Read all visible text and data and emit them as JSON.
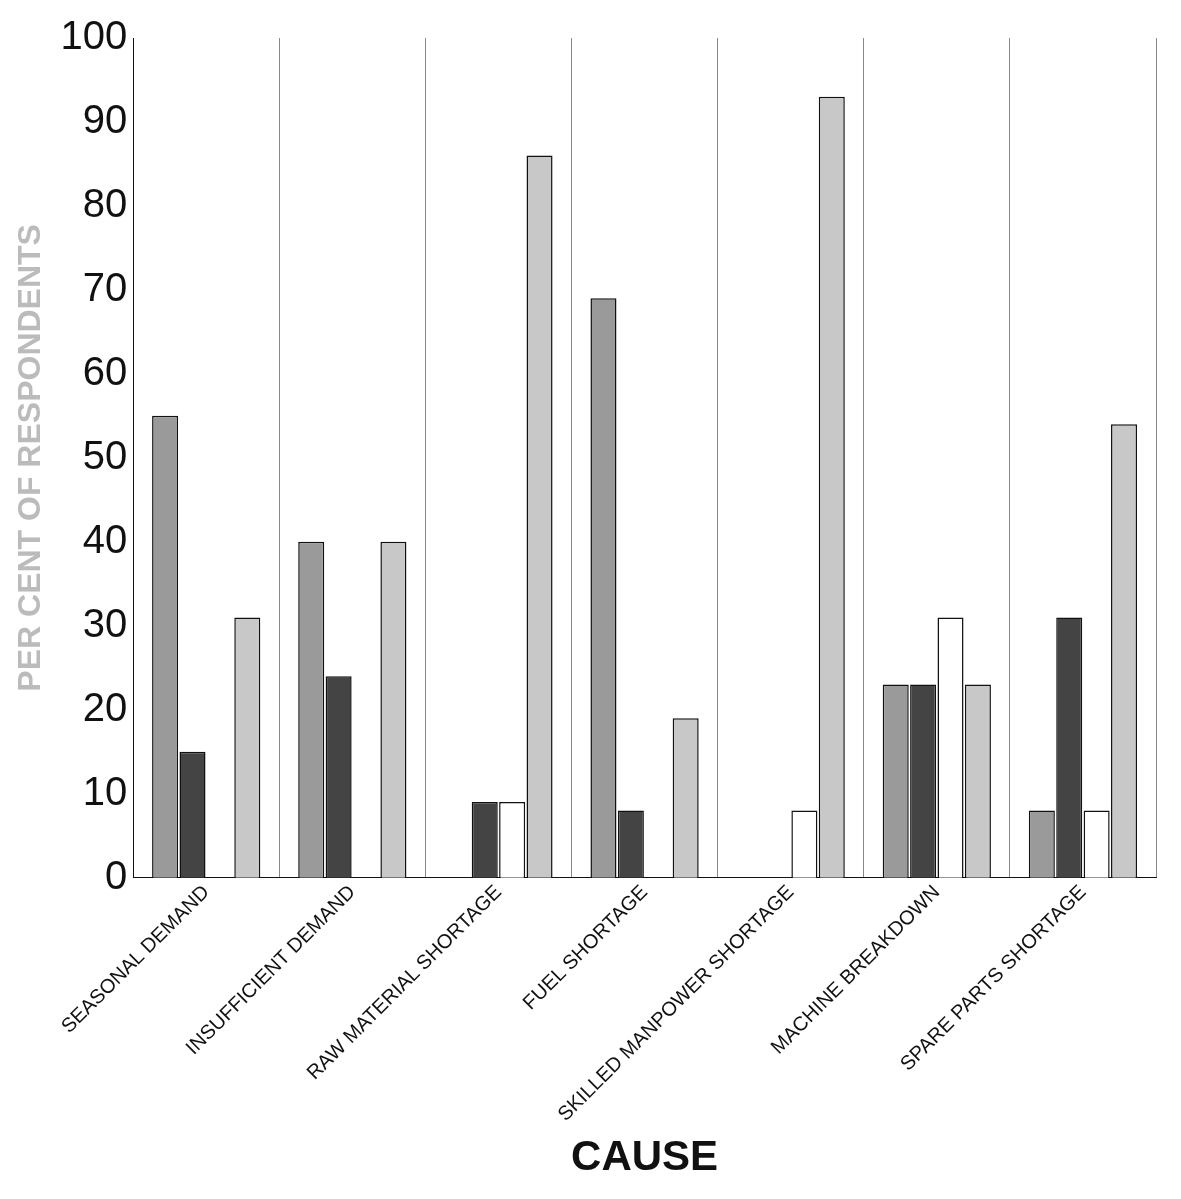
{
  "chart_data": {
    "type": "bar",
    "xlabel": "CAUSE",
    "ylabel": "PER CENT OF RESPONDENTS",
    "categories": [
      "SEASONAL DEMAND",
      "INSUFFICIENT DEMAND",
      "RAW MATERIAL SHORTAGE",
      "FUEL SHORTAGE",
      "SKILLED MANPOWER SHORTAGE",
      "MACHINE BREAKDOWN",
      "SPARE PARTS SHORTAGE"
    ],
    "series": [
      {
        "color": "#9a9a9a",
        "values": [
          55,
          40,
          0,
          69,
          0,
          23,
          8
        ]
      },
      {
        "color": "#444444",
        "values": [
          15,
          24,
          9,
          8,
          0,
          23,
          31
        ]
      },
      {
        "color": "#ffffff",
        "values": [
          0,
          0,
          9,
          0,
          8,
          31,
          8
        ]
      },
      {
        "color": "#c8c8c8",
        "values": [
          31,
          40,
          86,
          19,
          93,
          23,
          54
        ]
      }
    ],
    "ylim": [
      0,
      100
    ],
    "yticks": [
      0,
      10,
      20,
      30,
      40,
      50,
      60,
      70,
      80,
      90,
      100
    ],
    "grid": "x",
    "legend": false
  }
}
